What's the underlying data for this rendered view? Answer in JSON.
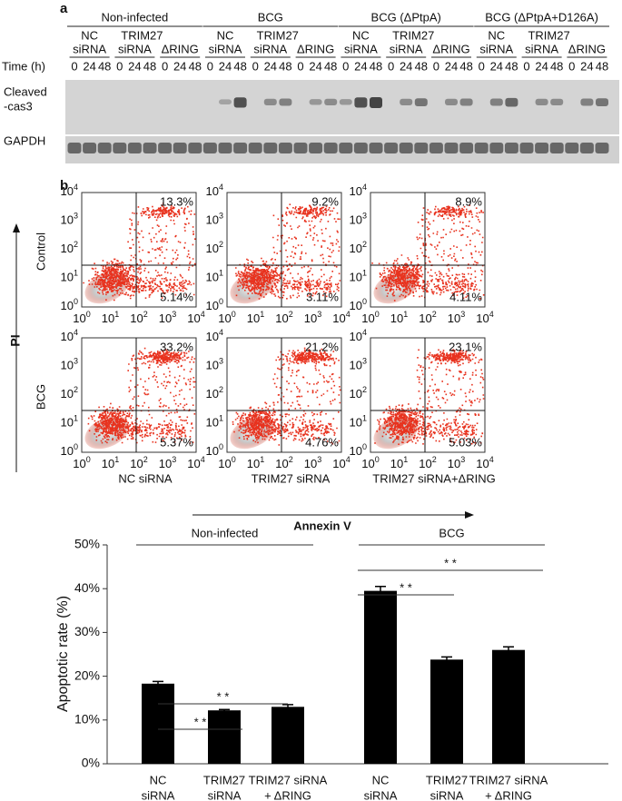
{
  "panel_a": {
    "label": "a",
    "groups": [
      "Non-infected",
      "BCG",
      "BCG (ΔPtpA)",
      "BCG (ΔPtpA+D126A)"
    ],
    "subgroups": [
      [
        "NC",
        "siRNA"
      ],
      [
        "TRIM27",
        "siRNA"
      ],
      [
        "ΔRING"
      ]
    ],
    "time_label": "Time (h)",
    "times": [
      "0",
      "24",
      "48"
    ],
    "rows": [
      [
        "Cleaved",
        "-cas3"
      ],
      [
        "GAPDH"
      ]
    ]
  },
  "panel_b": {
    "label": "b",
    "y_axis_label": "PI",
    "x_axis_label": "Annexin V",
    "row_labels": [
      "Control",
      "BCG"
    ],
    "col_labels": [
      "NC siRNA",
      "TRIM27  siRNA",
      "TRIM27  siRNA+ΔRING"
    ],
    "tick_base": "10",
    "tick_exponents": [
      "0",
      "1",
      "2",
      "3",
      "4"
    ],
    "plots": [
      [
        {
          "upper": "13.3%",
          "lower": "5.14%"
        },
        {
          "upper": "9.2%",
          "lower": "3.11%"
        },
        {
          "upper": "8.9%",
          "lower": "4.11%"
        }
      ],
      [
        {
          "upper": "33.2%",
          "lower": "5.37%"
        },
        {
          "upper": "21.2%",
          "lower": "4.76%"
        },
        {
          "upper": "23.1%",
          "lower": "5.03%"
        }
      ]
    ]
  },
  "chart_data": {
    "type": "bar",
    "y_label": "Apoptotic rate (%)",
    "categories": [
      [
        "NC",
        "siRNA"
      ],
      [
        "TRIM27",
        "siRNA"
      ],
      [
        "TRIM27  siRNA",
        "+ ΔRING"
      ],
      [
        "NC",
        "siRNA"
      ],
      [
        "TRIM27",
        "siRNA"
      ],
      [
        "TRIM27  siRNA",
        "+ ΔRING"
      ]
    ],
    "values": [
      18.3,
      12.2,
      13.0,
      39.5,
      23.8,
      26.0
    ],
    "errors": [
      0.5,
      0.2,
      0.5,
      1.0,
      0.6,
      0.7
    ],
    "color": "#000000",
    "ylim": [
      0,
      50
    ],
    "yticks": [
      {
        "value": 0,
        "label": "0%"
      },
      {
        "value": 10,
        "label": "10%"
      },
      {
        "value": 20,
        "label": "20%"
      },
      {
        "value": 30,
        "label": "30%"
      },
      {
        "value": 40,
        "label": "40%"
      },
      {
        "value": 50,
        "label": "50%"
      }
    ],
    "group_labels": [
      "Non-infected",
      "BCG"
    ],
    "significance": [
      "* *",
      "* *",
      "* *",
      "* *"
    ]
  }
}
